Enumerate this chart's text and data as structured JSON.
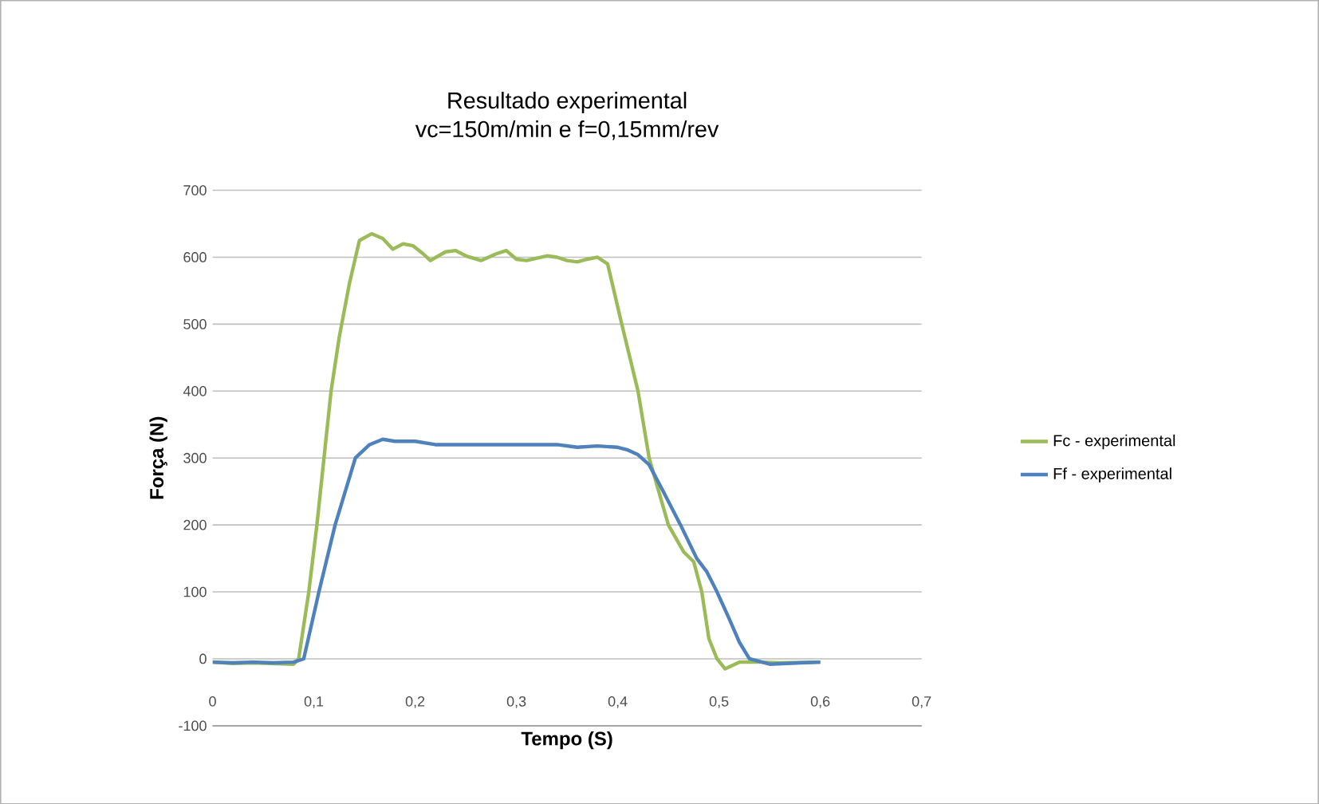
{
  "chart_data": {
    "type": "line",
    "title": "Resultado experimental\nvc=150m/min e f=0,15mm/rev",
    "xlabel": "Tempo (S)",
    "ylabel": "Força (N)",
    "xlim": [
      0,
      0.7
    ],
    "ylim": [
      -100,
      700
    ],
    "xticks": [
      {
        "value": 0,
        "label": "0"
      },
      {
        "value": 0.1,
        "label": "0,1"
      },
      {
        "value": 0.2,
        "label": "0,2"
      },
      {
        "value": 0.3,
        "label": "0,3"
      },
      {
        "value": 0.4,
        "label": "0,4"
      },
      {
        "value": 0.5,
        "label": "0,5"
      },
      {
        "value": 0.6,
        "label": "0,6"
      },
      {
        "value": 0.7,
        "label": "0,7"
      }
    ],
    "yticks": [
      -100,
      0,
      100,
      200,
      300,
      400,
      500,
      600,
      700
    ],
    "grid": "y",
    "legend": "right",
    "marker": "none",
    "line_style": "solid",
    "series": [
      {
        "name": "Fc - experimental",
        "color": "#9bbb59",
        "x": [
          0,
          0.02,
          0.04,
          0.06,
          0.08,
          0.085,
          0.095,
          0.103,
          0.11,
          0.117,
          0.125,
          0.135,
          0.145,
          0.157,
          0.168,
          0.178,
          0.188,
          0.198,
          0.208,
          0.215,
          0.23,
          0.24,
          0.25,
          0.265,
          0.28,
          0.29,
          0.3,
          0.31,
          0.33,
          0.34,
          0.35,
          0.36,
          0.37,
          0.38,
          0.39,
          0.404,
          0.42,
          0.431,
          0.45,
          0.465,
          0.475,
          0.483,
          0.49,
          0.498,
          0.506,
          0.52,
          0.54,
          0.56,
          0.6
        ],
        "values": [
          -5,
          -7,
          -6,
          -7,
          -8,
          0,
          100,
          200,
          300,
          400,
          480,
          560,
          625,
          635,
          628,
          612,
          620,
          617,
          605,
          595,
          608,
          610,
          602,
          595,
          605,
          610,
          597,
          595,
          602,
          600,
          595,
          593,
          597,
          600,
          590,
          500,
          400,
          300,
          200,
          160,
          145,
          100,
          30,
          0,
          -15,
          -5,
          -5,
          -6,
          -5
        ]
      },
      {
        "name": "Ff - experimental",
        "color": "#4f81bd",
        "x": [
          0,
          0.02,
          0.04,
          0.06,
          0.08,
          0.09,
          0.105,
          0.121,
          0.141,
          0.155,
          0.168,
          0.18,
          0.2,
          0.22,
          0.26,
          0.3,
          0.34,
          0.36,
          0.38,
          0.4,
          0.41,
          0.42,
          0.431,
          0.445,
          0.462,
          0.478,
          0.488,
          0.498,
          0.51,
          0.52,
          0.53,
          0.55,
          0.58,
          0.6
        ],
        "values": [
          -5,
          -6,
          -5,
          -6,
          -5,
          0,
          100,
          200,
          300,
          320,
          328,
          325,
          325,
          320,
          320,
          320,
          320,
          316,
          318,
          316,
          312,
          305,
          290,
          250,
          200,
          150,
          130,
          100,
          60,
          25,
          0,
          -8,
          -6,
          -5
        ]
      }
    ]
  }
}
